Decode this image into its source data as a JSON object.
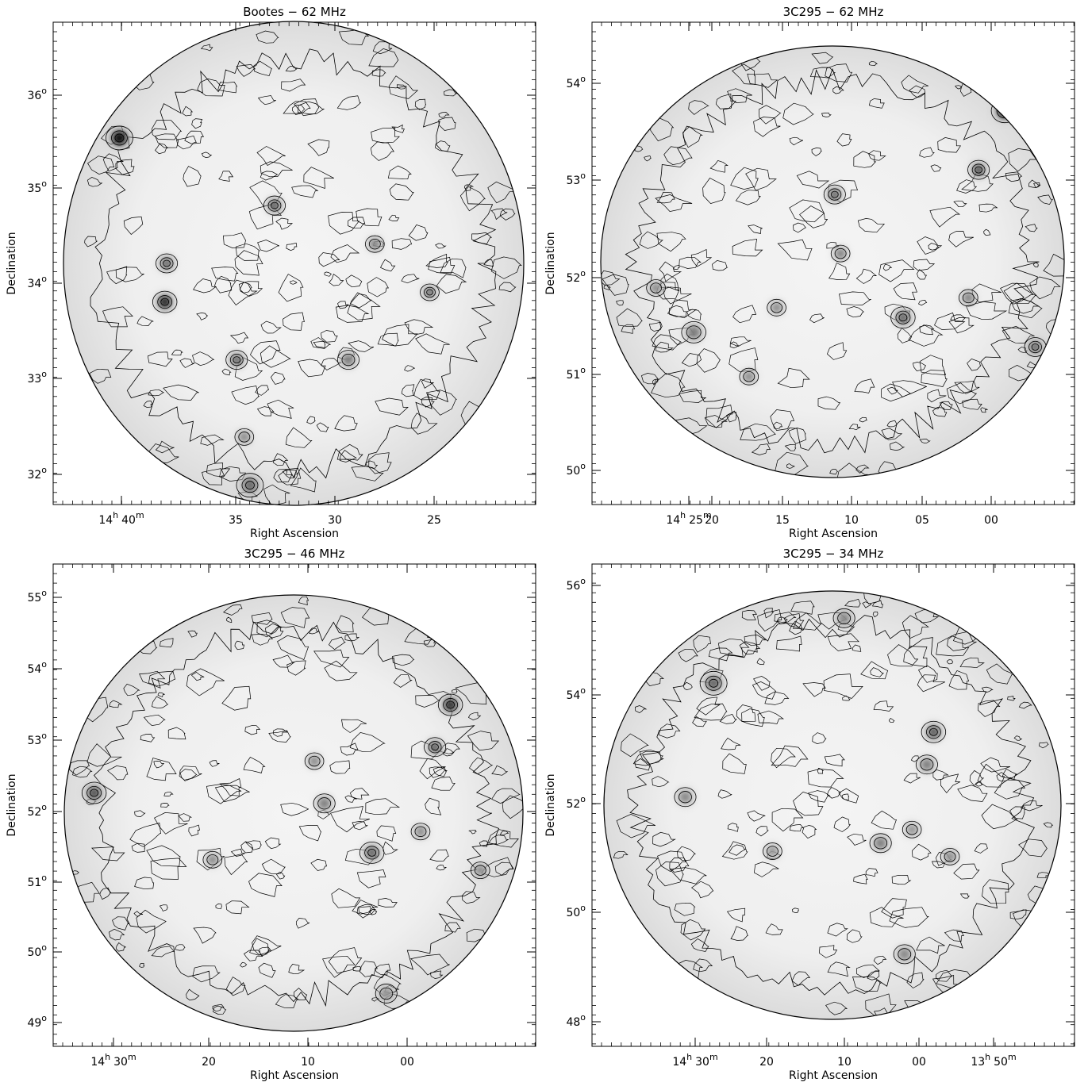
{
  "figure": {
    "panels": [
      {
        "id": "bootes-62",
        "title": "Bootes − 62 MHz",
        "xlabel": "Right Ascension",
        "ylabel": "Declination",
        "ra_ticks": [
          {
            "h": "14",
            "m": "40",
            "label": "14h 40m"
          },
          {
            "label": "35"
          },
          {
            "label": "30"
          },
          {
            "label": "25"
          }
        ],
        "dec_ticks": [
          "32°",
          "33°",
          "34°",
          "35°",
          "36°"
        ]
      },
      {
        "id": "3c295-62",
        "title": "3C295 − 62 MHz",
        "xlabel": "Right Ascension",
        "ylabel": "Declination",
        "ra_ticks": [
          {
            "h": "14",
            "m": "25",
            "label": "14h 25m"
          },
          {
            "label": "20"
          },
          {
            "label": "15"
          },
          {
            "label": "10"
          },
          {
            "label": "05"
          },
          {
            "label": "00"
          }
        ],
        "dec_ticks": [
          "50°",
          "51°",
          "52°",
          "53°",
          "54°"
        ]
      },
      {
        "id": "3c295-46",
        "title": "3C295 − 46 MHz",
        "xlabel": "Right Ascension",
        "ylabel": "Declination",
        "ra_ticks": [
          {
            "h": "14",
            "m": "30",
            "label": "14h 30m"
          },
          {
            "label": "20"
          },
          {
            "label": "10"
          },
          {
            "label": "00"
          }
        ],
        "dec_ticks": [
          "49°",
          "50°",
          "51°",
          "52°",
          "53°",
          "54°",
          "55°"
        ]
      },
      {
        "id": "3c295-34",
        "title": "3C295 − 34 MHz",
        "xlabel": "Right Ascension",
        "ylabel": "Declination",
        "ra_ticks": [
          {
            "h": "14",
            "m": "30",
            "label": "14h 30m"
          },
          {
            "label": "20"
          },
          {
            "label": "10"
          },
          {
            "label": "00"
          },
          {
            "h": "13",
            "m": "50",
            "label": "13h 50m"
          }
        ],
        "dec_ticks": [
          "48°",
          "50°",
          "52°",
          "54°",
          "56°"
        ]
      }
    ]
  },
  "chart_data": [
    {
      "type": "heatmap",
      "title": "Bootes − 62 MHz",
      "xlabel": "Right Ascension",
      "ylabel": "Declination",
      "x_tick_labels": [
        "14h 40m",
        "35",
        "30",
        "25"
      ],
      "y_tick_labels": [
        "32°",
        "33°",
        "34°",
        "35°",
        "36°"
      ],
      "ylim_deg": [
        31.7,
        36.7
      ],
      "xlim_ra": [
        "14h 45.2m",
        "14h 19.7m"
      ],
      "colormap": "grayscale, darker = brighter flux",
      "contours": true,
      "sources": [
        {
          "ra": "14h 41.7m",
          "dec": 35.5,
          "brightness": 1.0,
          "size": 1.0
        },
        {
          "ra": "14h 39.3m",
          "dec": 33.8,
          "brightness": 0.85,
          "size": 0.9
        },
        {
          "ra": "14h 39.2m",
          "dec": 34.2,
          "brightness": 0.55,
          "size": 0.8
        },
        {
          "ra": "14h 33.5m",
          "dec": 34.8,
          "brightness": 0.6,
          "size": 0.8
        },
        {
          "ra": "14h 35.5m",
          "dec": 33.2,
          "brightness": 0.55,
          "size": 0.8
        },
        {
          "ra": "14h 29.6m",
          "dec": 33.2,
          "brightness": 0.5,
          "size": 0.8
        },
        {
          "ra": "14h 28.2m",
          "dec": 34.4,
          "brightness": 0.5,
          "size": 0.7
        },
        {
          "ra": "14h 25.3m",
          "dec": 33.9,
          "brightness": 0.55,
          "size": 0.7
        },
        {
          "ra": "14h 35.1m",
          "dec": 32.4,
          "brightness": 0.45,
          "size": 0.7
        },
        {
          "ra": "14h 34.8m",
          "dec": 31.9,
          "brightness": 0.55,
          "size": 1.0
        }
      ]
    },
    {
      "type": "heatmap",
      "title": "3C295 − 62 MHz",
      "xlabel": "Right Ascension",
      "ylabel": "Declination",
      "x_tick_labels": [
        "14h 25m",
        "20",
        "15",
        "10",
        "05",
        "00"
      ],
      "y_tick_labels": [
        "50°",
        "51°",
        "52°",
        "53°",
        "54°"
      ],
      "ylim_deg": [
        49.6,
        54.5
      ],
      "xlim_ra": [
        "14h 28.4m",
        "13h 55.2m"
      ],
      "colormap": "grayscale, darker = brighter flux",
      "contours": true,
      "sources": [
        {
          "ra": "14h 00.0m",
          "dec": 53.6,
          "brightness": 1.0,
          "size": 1.0
        },
        {
          "ra": "14h 01.8m",
          "dec": 53.0,
          "brightness": 0.65,
          "size": 0.8
        },
        {
          "ra": "14h 11.7m",
          "dec": 52.75,
          "brightness": 0.55,
          "size": 0.8
        },
        {
          "ra": "14h 11.3m",
          "dec": 52.15,
          "brightness": 0.5,
          "size": 0.7
        },
        {
          "ra": "14h 07.0m",
          "dec": 51.5,
          "brightness": 0.55,
          "size": 0.9
        },
        {
          "ra": "14h 21.4m",
          "dec": 51.35,
          "brightness": 0.5,
          "size": 0.9
        },
        {
          "ra": "13h 57.9m",
          "dec": 51.2,
          "brightness": 0.55,
          "size": 0.8
        },
        {
          "ra": "14h 02.5m",
          "dec": 51.7,
          "brightness": 0.5,
          "size": 0.7
        },
        {
          "ra": "14h 15.7m",
          "dec": 51.6,
          "brightness": 0.45,
          "size": 0.7
        },
        {
          "ra": "14h 24.0m",
          "dec": 51.8,
          "brightness": 0.45,
          "size": 0.7
        },
        {
          "ra": "14h 17.6m",
          "dec": 50.9,
          "brightness": 0.45,
          "size": 0.7
        }
      ]
    },
    {
      "type": "heatmap",
      "title": "3C295 − 46 MHz",
      "xlabel": "Right Ascension",
      "ylabel": "Declination",
      "x_tick_labels": [
        "14h 30m",
        "20",
        "10",
        "00"
      ],
      "y_tick_labels": [
        "49°",
        "50°",
        "51°",
        "52°",
        "53°",
        "54°",
        "55°"
      ],
      "ylim_deg": [
        48.65,
        55.5
      ],
      "xlim_ra": [
        "14h 35.9m",
        "13h 52.3m"
      ],
      "colormap": "grayscale, darker = brighter flux",
      "contours": true,
      "sources": [
        {
          "ra": "14h 00.0m",
          "dec": 53.5,
          "brightness": 0.8,
          "size": 0.9
        },
        {
          "ra": "14h 01.4m",
          "dec": 52.9,
          "brightness": 0.6,
          "size": 0.8
        },
        {
          "ra": "14h 32.2m",
          "dec": 52.25,
          "brightness": 0.65,
          "size": 0.9
        },
        {
          "ra": "14h 11.4m",
          "dec": 52.1,
          "brightness": 0.5,
          "size": 0.8
        },
        {
          "ra": "14h 07.1m",
          "dec": 51.4,
          "brightness": 0.55,
          "size": 0.9
        },
        {
          "ra": "14h 21.5m",
          "dec": 51.3,
          "brightness": 0.45,
          "size": 0.7
        },
        {
          "ra": "14h 12.3m",
          "dec": 52.7,
          "brightness": 0.45,
          "size": 0.7
        },
        {
          "ra": "13h 57.3m",
          "dec": 51.15,
          "brightness": 0.45,
          "size": 0.7
        },
        {
          "ra": "14h 02.7m",
          "dec": 51.7,
          "brightness": 0.45,
          "size": 0.7
        },
        {
          "ra": "14h 05.8m",
          "dec": 49.4,
          "brightness": 0.4,
          "size": 0.8
        }
      ]
    },
    {
      "type": "heatmap",
      "title": "3C295 − 34 MHz",
      "xlabel": "Right Ascension",
      "ylabel": "Declination",
      "x_tick_labels": [
        "14h 30m",
        "20",
        "10",
        "00",
        "13h 50m"
      ],
      "y_tick_labels": [
        "48°",
        "50°",
        "52°",
        "54°",
        "56°"
      ],
      "ylim_deg": [
        47.6,
        56.5
      ],
      "xlim_ra": [
        "14h 45.3m",
        "13h 40.6m"
      ],
      "colormap": "grayscale, darker = brighter flux",
      "contours": true,
      "sources": [
        {
          "ra": "14h 29.0m",
          "dec": 54.3,
          "brightness": 0.55,
          "size": 1.0
        },
        {
          "ra": "14h 11.5m",
          "dec": 55.5,
          "brightness": 0.45,
          "size": 0.8
        },
        {
          "ra": "13h 59.5m",
          "dec": 53.4,
          "brightness": 0.6,
          "size": 0.9
        },
        {
          "ra": "14h 00.4m",
          "dec": 52.8,
          "brightness": 0.5,
          "size": 0.8
        },
        {
          "ra": "14h 32.8m",
          "dec": 52.2,
          "brightness": 0.45,
          "size": 0.8
        },
        {
          "ra": "14h 06.6m",
          "dec": 51.35,
          "brightness": 0.5,
          "size": 0.8
        },
        {
          "ra": "13h 57.3m",
          "dec": 51.1,
          "brightness": 0.45,
          "size": 0.7
        },
        {
          "ra": "14h 02.4m",
          "dec": 51.6,
          "brightness": 0.4,
          "size": 0.7
        },
        {
          "ra": "14h 03.4m",
          "dec": 49.3,
          "brightness": 0.45,
          "size": 0.8
        },
        {
          "ra": "14h 21.1m",
          "dec": 51.2,
          "brightness": 0.4,
          "size": 0.7
        }
      ]
    }
  ]
}
